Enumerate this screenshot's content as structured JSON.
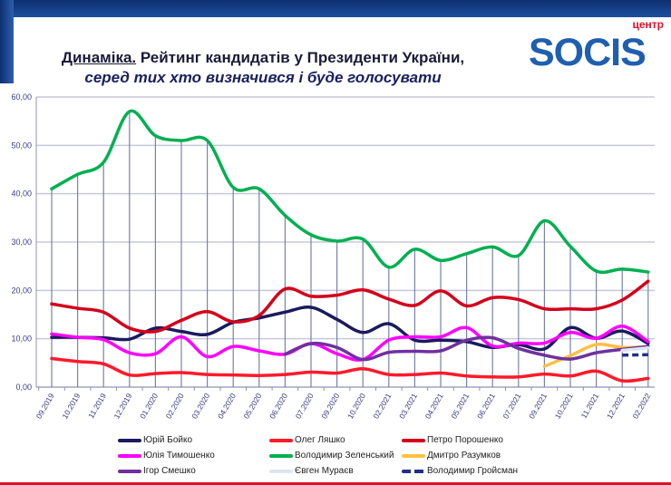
{
  "header": {
    "title_underlined": "Динаміка.",
    "title_rest": " Рейтинг кандидатів у Президенти України,",
    "subtitle": "серед тих хто визначився і буде голосувати",
    "logo_small": "центр",
    "logo_big": "SOCIS"
  },
  "colors": {
    "topbar": "#123a80",
    "accent": "#e0102a"
  },
  "chart_data": {
    "type": "line",
    "title": "",
    "xlabel": "",
    "ylabel": "",
    "ylim": [
      0,
      60
    ],
    "yticks": [
      "0,00",
      "10,00",
      "20,00",
      "30,00",
      "40,00",
      "50,00",
      "60,00"
    ],
    "grid": "horizontal",
    "legend_placement": "bottom",
    "categories": [
      "09.2019",
      "10.2019",
      "11.2019",
      "12.2019",
      "01.2020",
      "02.2020",
      "03.2020",
      "04.2020",
      "05.2020",
      "06.2020",
      "07.2020",
      "09.2020",
      "10.2020",
      "02.2021",
      "03.2021",
      "04.2021",
      "05.2021",
      "06.2021",
      "07.2021",
      "09.2021",
      "10.2021",
      "11.2021",
      "12.2021",
      "02.2022"
    ],
    "series": [
      {
        "name": "Юрій Бойко",
        "color": "#1a1a5e",
        "style": "solid",
        "values": [
          10.3,
          10.3,
          10.2,
          9.9,
          12.2,
          11.5,
          10.9,
          13.4,
          14.3,
          15.5,
          16.5,
          14.0,
          11.3,
          13.1,
          9.7,
          9.7,
          9.4,
          8.2,
          8.8,
          7.9,
          12.3,
          10.1,
          11.6,
          9.0
        ]
      },
      {
        "name": "Олег Ляшко",
        "color": "#ff1a2a",
        "style": "solid",
        "values": [
          5.9,
          5.3,
          4.8,
          2.5,
          2.8,
          3.0,
          2.6,
          2.5,
          2.4,
          2.6,
          3.1,
          2.9,
          3.8,
          2.6,
          2.6,
          2.9,
          2.3,
          2.1,
          2.1,
          2.7,
          2.3,
          3.3,
          1.3,
          1.8
        ]
      },
      {
        "name": "Петро Порошенко",
        "color": "#d4001a",
        "style": "solid",
        "values": [
          17.2,
          16.3,
          15.5,
          12.2,
          11.5,
          13.8,
          15.6,
          13.5,
          14.8,
          20.3,
          18.8,
          19.0,
          20.1,
          18.2,
          16.9,
          19.9,
          16.8,
          18.5,
          18.1,
          16.2,
          16.2,
          16.2,
          18.0,
          21.9
        ]
      },
      {
        "name": "Юлія Тимошенко",
        "color": "#ff00ff",
        "style": "solid",
        "values": [
          11.0,
          10.3,
          9.8,
          7.1,
          6.9,
          10.4,
          6.3,
          8.4,
          7.5,
          6.8,
          9.0,
          6.9,
          5.7,
          9.7,
          10.4,
          10.4,
          12.3,
          8.5,
          9.1,
          9.1,
          11.3,
          10.1,
          12.6,
          9.4
        ]
      },
      {
        "name": "Володимир Зеленський",
        "color": "#00b050",
        "style": "solid",
        "values": [
          41.0,
          44.0,
          46.5,
          57.0,
          52.0,
          51.0,
          51.0,
          41.3,
          41.0,
          35.5,
          31.5,
          30.2,
          30.6,
          24.8,
          28.5,
          26.2,
          27.6,
          29.0,
          27.2,
          34.4,
          29.1,
          24.0,
          24.4,
          23.8
        ]
      },
      {
        "name": "Дмитро Разумков",
        "color": "#ffc040",
        "style": "solid",
        "values": [
          null,
          null,
          null,
          null,
          null,
          null,
          null,
          null,
          null,
          null,
          null,
          null,
          null,
          null,
          null,
          null,
          null,
          null,
          null,
          4.3,
          6.5,
          8.8,
          8.2,
          8.3
        ]
      },
      {
        "name": "Ігор Смешко",
        "color": "#7030a0",
        "style": "solid",
        "values": [
          null,
          null,
          null,
          null,
          null,
          null,
          null,
          null,
          null,
          6.8,
          9.0,
          8.2,
          5.7,
          7.2,
          7.4,
          7.5,
          9.7,
          10.2,
          8.0,
          6.6,
          5.8,
          7.1,
          7.8,
          8.4
        ]
      },
      {
        "name": "Євген Мураєв",
        "color": "#dce6f2",
        "style": "solid",
        "values": [
          null,
          null,
          null,
          null,
          null,
          null,
          null,
          null,
          null,
          null,
          null,
          null,
          null,
          null,
          null,
          null,
          null,
          null,
          null,
          null,
          null,
          null,
          7.6,
          8.1
        ]
      },
      {
        "name": "Володимир Гройсман",
        "color": "#1f2f8a",
        "style": "dashed",
        "values": [
          null,
          null,
          null,
          null,
          null,
          null,
          null,
          null,
          null,
          null,
          null,
          null,
          null,
          null,
          null,
          null,
          null,
          null,
          null,
          null,
          null,
          null,
          6.6,
          6.7
        ]
      }
    ]
  }
}
